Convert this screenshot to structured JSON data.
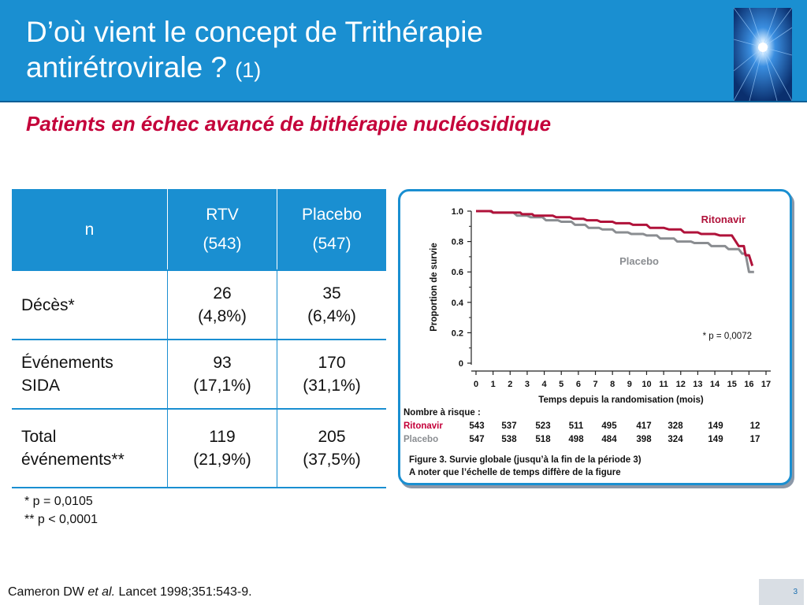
{
  "header": {
    "title_line1": "D’où vient le concept de Trithérapie",
    "title_line2": "antirétrovirale ?",
    "title_suffix": "(1)"
  },
  "subtitle": "Patients en échec avancé de bithérapie nucléosidique",
  "table": {
    "headers": [
      {
        "line1": "n",
        "line2": ""
      },
      {
        "line1": "RTV",
        "line2": "(543)"
      },
      {
        "line1": "Placebo",
        "line2": "(547)"
      }
    ],
    "rows": [
      {
        "label_line1": "Décès*",
        "label_line2": "",
        "rtv_line1": "26",
        "rtv_line2": "(4,8%)",
        "pla_line1": "35",
        "pla_line2": "(6,4%)"
      },
      {
        "label_line1": "Événements",
        "label_line2": "SIDA",
        "rtv_line1": "93",
        "rtv_line2": "(17,1%)",
        "pla_line1": "170",
        "pla_line2": "(31,1%)"
      },
      {
        "label_line1": "Total",
        "label_line2": "événements**",
        "rtv_line1": "119",
        "rtv_line2": "(21,9%)",
        "pla_line1": "205",
        "pla_line2": "(37,5%)"
      }
    ]
  },
  "footnotes": {
    "note1": "* p = 0,0105",
    "note2": "** p < 0,0001"
  },
  "reference": {
    "author": "Cameron DW",
    "etal": "et al.",
    "journal": "Lancet 1998;351:543-9."
  },
  "page_number": "3",
  "chart_data": {
    "type": "line",
    "xlabel": "Temps depuis la randomisation (mois)",
    "ylabel": "Proportion de survie",
    "xlim": [
      0,
      17
    ],
    "ylim": [
      0,
      1.0
    ],
    "x_ticks": [
      "0",
      "1",
      "2",
      "3",
      "4",
      "5",
      "6",
      "7",
      "8",
      "9",
      "10",
      "11",
      "12",
      "13",
      "14",
      "15",
      "16",
      "17"
    ],
    "y_ticks": [
      "1.0",
      "0.8",
      "0.6",
      "0.4",
      "0.2",
      "0"
    ],
    "annotation": "* p = 0,0072",
    "series": [
      {
        "name": "Ritonavir",
        "color": "#b0123a",
        "x": [
          0,
          0.9,
          1.0,
          2.6,
          2.7,
          3.3,
          3.4,
          4.5,
          4.7,
          5.5,
          5.7,
          6.3,
          6.5,
          7.1,
          7.3,
          8.0,
          8.2,
          9.0,
          9.2,
          10.0,
          10.2,
          11.0,
          11.3,
          12.0,
          12.2,
          13.0,
          13.2,
          14.0,
          14.3,
          15.0,
          15.4,
          15.7,
          15.8,
          16.0,
          16.2
        ],
        "y": [
          1.0,
          1.0,
          0.99,
          0.99,
          0.98,
          0.98,
          0.97,
          0.97,
          0.96,
          0.96,
          0.95,
          0.95,
          0.94,
          0.94,
          0.93,
          0.93,
          0.92,
          0.92,
          0.91,
          0.91,
          0.89,
          0.89,
          0.88,
          0.88,
          0.86,
          0.86,
          0.85,
          0.85,
          0.84,
          0.84,
          0.77,
          0.77,
          0.71,
          0.71,
          0.64
        ]
      },
      {
        "name": "Placebo",
        "color": "#8a8d91",
        "x": [
          0,
          0.8,
          1.0,
          2.2,
          2.4,
          3.0,
          3.2,
          3.9,
          4.1,
          4.8,
          5.0,
          5.6,
          5.8,
          6.4,
          6.6,
          7.2,
          7.4,
          8.0,
          8.2,
          8.9,
          9.1,
          9.8,
          10.0,
          10.6,
          10.8,
          11.6,
          11.8,
          12.6,
          12.8,
          13.6,
          13.8,
          14.6,
          14.8,
          15.4,
          15.6,
          15.8,
          16.0,
          16.3
        ],
        "y": [
          1.0,
          1.0,
          0.99,
          0.99,
          0.97,
          0.97,
          0.96,
          0.96,
          0.94,
          0.94,
          0.93,
          0.93,
          0.91,
          0.91,
          0.89,
          0.89,
          0.88,
          0.88,
          0.86,
          0.86,
          0.85,
          0.85,
          0.84,
          0.84,
          0.82,
          0.82,
          0.8,
          0.8,
          0.79,
          0.79,
          0.77,
          0.77,
          0.75,
          0.75,
          0.72,
          0.72,
          0.6,
          0.6
        ]
      }
    ],
    "risk_table": {
      "title": "Nombre à risque :",
      "rows": [
        {
          "name": "Ritonavir",
          "color": "#c4003a",
          "values": [
            "543",
            "537",
            "523",
            "511",
            "495",
            "417",
            "328",
            "149",
            "12"
          ]
        },
        {
          "name": "Placebo",
          "color": "#8a8d91",
          "values": [
            "547",
            "538",
            "518",
            "498",
            "484",
            "398",
            "324",
            "149",
            "17"
          ]
        }
      ]
    },
    "caption_line1": "Figure 3. Survie globale (jusqu’à la fin de la période 3)",
    "caption_line2": "A noter que l’échelle de temps diffère de la figure"
  }
}
